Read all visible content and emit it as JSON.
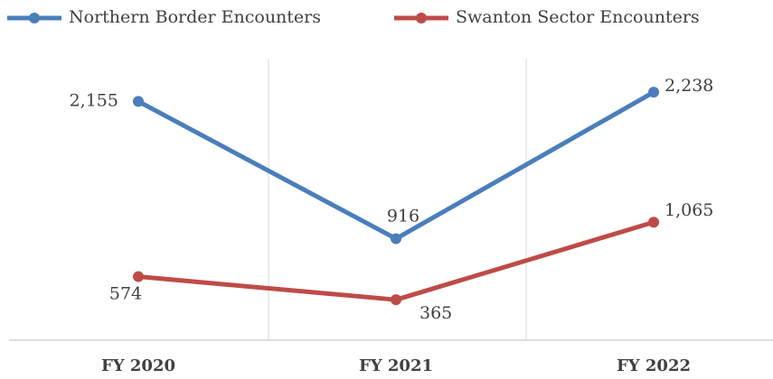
{
  "chart_data": {
    "type": "line",
    "categories": [
      "FY 2020",
      "FY 2021",
      "FY 2022"
    ],
    "series": [
      {
        "name": "Northern Border Encounters",
        "color": "#4a7ebb",
        "values": [
          2155,
          916,
          2238
        ],
        "value_labels": [
          "2,155",
          "916",
          "2,238"
        ]
      },
      {
        "name": "Swanton Sector Encounters",
        "color": "#be4b48",
        "values": [
          574,
          365,
          1065
        ],
        "value_labels": [
          "574",
          "365",
          "1,065"
        ]
      }
    ],
    "ylim": [
      0,
      2500
    ],
    "legend": "top"
  }
}
